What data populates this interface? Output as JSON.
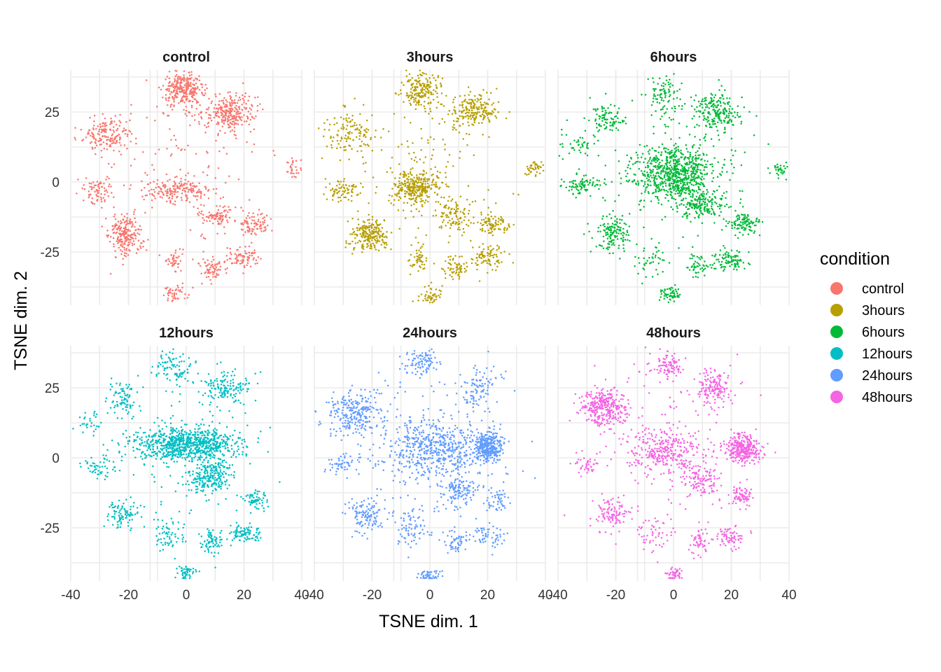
{
  "chart_data": {
    "type": "scatter",
    "xlabel": "TSNE dim. 1",
    "ylabel": "TSNE dim. 2",
    "xlim": [
      -40,
      40
    ],
    "ylim": [
      -44,
      40
    ],
    "xticks": [
      -40,
      -20,
      0,
      20,
      40
    ],
    "yticks": [
      -25,
      0,
      25
    ],
    "grid": true,
    "legend": {
      "title": "condition",
      "position": "right"
    },
    "panels": [
      {
        "title": "control",
        "color": "#F8766D",
        "clusters": [
          {
            "x": -1,
            "y": 33,
            "sx": 3.5,
            "sy": 3,
            "n": 300
          },
          {
            "x": 15,
            "y": 25,
            "sx": 4.5,
            "sy": 3.2,
            "n": 260
          },
          {
            "x": -27,
            "y": 17,
            "sx": 4.5,
            "sy": 3.5,
            "n": 170
          },
          {
            "x": -30,
            "y": -3,
            "sx": 2.5,
            "sy": 2.5,
            "n": 70
          },
          {
            "x": -3,
            "y": -3,
            "sx": 5,
            "sy": 2,
            "n": 160
          },
          {
            "x": -21,
            "y": -19,
            "sx": 3,
            "sy": 3.5,
            "n": 220
          },
          {
            "x": 10,
            "y": -12,
            "sx": 3,
            "sy": 2,
            "n": 80
          },
          {
            "x": 24,
            "y": -15,
            "sx": 3,
            "sy": 2,
            "n": 80
          },
          {
            "x": 9,
            "y": -31,
            "sx": 2.5,
            "sy": 2,
            "n": 70
          },
          {
            "x": 20,
            "y": -27,
            "sx": 3,
            "sy": 2,
            "n": 80
          },
          {
            "x": -4,
            "y": -28,
            "sx": 2,
            "sy": 2,
            "n": 40
          },
          {
            "x": -4,
            "y": -40,
            "sx": 2,
            "sy": 1.6,
            "n": 45
          },
          {
            "x": 37,
            "y": 5,
            "sx": 1.5,
            "sy": 1.5,
            "n": 30
          },
          {
            "x": 0,
            "y": 5,
            "sx": 14,
            "sy": 14,
            "n": 140
          }
        ]
      },
      {
        "title": "3hours",
        "color": "#B79F00",
        "clusters": [
          {
            "x": -3,
            "y": 33,
            "sx": 3,
            "sy": 3,
            "n": 180
          },
          {
            "x": 15,
            "y": 26,
            "sx": 4,
            "sy": 3,
            "n": 200
          },
          {
            "x": -27,
            "y": 17,
            "sx": 5,
            "sy": 4,
            "n": 120
          },
          {
            "x": -30,
            "y": -3,
            "sx": 3,
            "sy": 2,
            "n": 70
          },
          {
            "x": -5,
            "y": -2,
            "sx": 4,
            "sy": 3,
            "n": 300
          },
          {
            "x": -21,
            "y": -19,
            "sx": 3,
            "sy": 3,
            "n": 220
          },
          {
            "x": 8,
            "y": -12,
            "sx": 3,
            "sy": 3,
            "n": 90
          },
          {
            "x": 22,
            "y": -15,
            "sx": 3,
            "sy": 2,
            "n": 90
          },
          {
            "x": 9,
            "y": -31,
            "sx": 2,
            "sy": 2,
            "n": 60
          },
          {
            "x": 20,
            "y": -27,
            "sx": 3,
            "sy": 2,
            "n": 80
          },
          {
            "x": -4,
            "y": -28,
            "sx": 2,
            "sy": 2,
            "n": 45
          },
          {
            "x": 0,
            "y": -41,
            "sx": 2,
            "sy": 1.5,
            "n": 50
          },
          {
            "x": 36,
            "y": 5,
            "sx": 1.5,
            "sy": 1.5,
            "n": 40
          },
          {
            "x": 0,
            "y": 5,
            "sx": 14,
            "sy": 14,
            "n": 140
          }
        ]
      },
      {
        "title": "6hours",
        "color": "#00BA38",
        "clusters": [
          {
            "x": -3,
            "y": 31,
            "sx": 3,
            "sy": 4,
            "n": 90
          },
          {
            "x": 15,
            "y": 25,
            "sx": 4,
            "sy": 3.5,
            "n": 210
          },
          {
            "x": -23,
            "y": 22,
            "sx": 3,
            "sy": 3,
            "n": 90
          },
          {
            "x": -33,
            "y": 13,
            "sx": 4,
            "sy": 2,
            "n": 40
          },
          {
            "x": -32,
            "y": -1,
            "sx": 4,
            "sy": 2,
            "n": 90
          },
          {
            "x": 0,
            "y": 3,
            "sx": 7,
            "sy": 5,
            "n": 700
          },
          {
            "x": 10,
            "y": -8,
            "sx": 4,
            "sy": 3,
            "n": 160
          },
          {
            "x": -21,
            "y": -19,
            "sx": 3,
            "sy": 3,
            "n": 140
          },
          {
            "x": 24,
            "y": -15,
            "sx": 3,
            "sy": 2,
            "n": 100
          },
          {
            "x": 20,
            "y": -28,
            "sx": 3,
            "sy": 2,
            "n": 90
          },
          {
            "x": 9,
            "y": -30,
            "sx": 2,
            "sy": 2,
            "n": 50
          },
          {
            "x": -1,
            "y": -40,
            "sx": 2,
            "sy": 1.5,
            "n": 60
          },
          {
            "x": 37,
            "y": 4,
            "sx": 1.5,
            "sy": 1.5,
            "n": 30
          },
          {
            "x": -8,
            "y": -28,
            "sx": 3,
            "sy": 3,
            "n": 40
          },
          {
            "x": 0,
            "y": 5,
            "sx": 14,
            "sy": 14,
            "n": 120
          }
        ]
      },
      {
        "title": "12hours",
        "color": "#00BFC4",
        "clusters": [
          {
            "x": -4,
            "y": 32,
            "sx": 3,
            "sy": 3.5,
            "n": 90
          },
          {
            "x": 14,
            "y": 25,
            "sx": 4,
            "sy": 3,
            "n": 140
          },
          {
            "x": -22,
            "y": 21,
            "sx": 2.5,
            "sy": 3,
            "n": 80
          },
          {
            "x": -34,
            "y": 13,
            "sx": 2,
            "sy": 2,
            "n": 30
          },
          {
            "x": -30,
            "y": -3,
            "sx": 3,
            "sy": 2,
            "n": 50
          },
          {
            "x": 0,
            "y": 5,
            "sx": 9,
            "sy": 3,
            "n": 800
          },
          {
            "x": 8,
            "y": -7,
            "sx": 3.5,
            "sy": 3,
            "n": 220
          },
          {
            "x": -22,
            "y": -20,
            "sx": 3,
            "sy": 2.5,
            "n": 90
          },
          {
            "x": 24,
            "y": -15,
            "sx": 2,
            "sy": 2,
            "n": 60
          },
          {
            "x": 20,
            "y": -27,
            "sx": 3,
            "sy": 1.5,
            "n": 90
          },
          {
            "x": 9,
            "y": -30,
            "sx": 2,
            "sy": 2,
            "n": 70
          },
          {
            "x": -6,
            "y": -27,
            "sx": 3,
            "sy": 3,
            "n": 60
          },
          {
            "x": 0,
            "y": -41,
            "sx": 2,
            "sy": 1.5,
            "n": 50
          },
          {
            "x": 0,
            "y": 5,
            "sx": 14,
            "sy": 14,
            "n": 120
          }
        ]
      },
      {
        "title": "24hours",
        "color": "#619CFF",
        "clusters": [
          {
            "x": -3,
            "y": 34,
            "sx": 3,
            "sy": 2.5,
            "n": 90
          },
          {
            "x": 17,
            "y": 25,
            "sx": 3.5,
            "sy": 4,
            "n": 100
          },
          {
            "x": -26,
            "y": 16,
            "sx": 5,
            "sy": 4,
            "n": 260
          },
          {
            "x": -30,
            "y": -2,
            "sx": 3,
            "sy": 2,
            "n": 50
          },
          {
            "x": 20,
            "y": 4,
            "sx": 2.5,
            "sy": 2.5,
            "n": 300
          },
          {
            "x": 2,
            "y": 3,
            "sx": 9,
            "sy": 5,
            "n": 500
          },
          {
            "x": -22,
            "y": -20,
            "sx": 3,
            "sy": 3,
            "n": 120
          },
          {
            "x": 10,
            "y": -12,
            "sx": 3,
            "sy": 3,
            "n": 120
          },
          {
            "x": 23,
            "y": -15,
            "sx": 2,
            "sy": 2,
            "n": 50
          },
          {
            "x": 20,
            "y": -28,
            "sx": 3,
            "sy": 2,
            "n": 60
          },
          {
            "x": 9,
            "y": -30,
            "sx": 2,
            "sy": 2,
            "n": 50
          },
          {
            "x": -6,
            "y": -25,
            "sx": 3,
            "sy": 4,
            "n": 70
          },
          {
            "x": 0,
            "y": -42,
            "sx": 2,
            "sy": 1.5,
            "n": 50
          },
          {
            "x": 0,
            "y": 5,
            "sx": 14,
            "sy": 14,
            "n": 150
          }
        ]
      },
      {
        "title": "48hours",
        "color": "#F564E3",
        "clusters": [
          {
            "x": -2,
            "y": 33,
            "sx": 3,
            "sy": 2.5,
            "n": 100
          },
          {
            "x": 14,
            "y": 25,
            "sx": 3,
            "sy": 3,
            "n": 150
          },
          {
            "x": -24,
            "y": 18,
            "sx": 4,
            "sy": 3.5,
            "n": 330
          },
          {
            "x": -31,
            "y": -3,
            "sx": 2,
            "sy": 2,
            "n": 40
          },
          {
            "x": 24,
            "y": 3,
            "sx": 3,
            "sy": 2.5,
            "n": 300
          },
          {
            "x": -3,
            "y": 2,
            "sx": 6,
            "sy": 4,
            "n": 300
          },
          {
            "x": 10,
            "y": -8,
            "sx": 3,
            "sy": 3,
            "n": 100
          },
          {
            "x": -22,
            "y": -20,
            "sx": 3,
            "sy": 3,
            "n": 100
          },
          {
            "x": 24,
            "y": -14,
            "sx": 2,
            "sy": 2,
            "n": 70
          },
          {
            "x": 20,
            "y": -28,
            "sx": 2.5,
            "sy": 2,
            "n": 70
          },
          {
            "x": 9,
            "y": -30,
            "sx": 2,
            "sy": 2,
            "n": 50
          },
          {
            "x": -6,
            "y": -27,
            "sx": 3,
            "sy": 3,
            "n": 50
          },
          {
            "x": 0,
            "y": -42,
            "sx": 1.5,
            "sy": 1.5,
            "n": 50
          },
          {
            "x": 0,
            "y": 5,
            "sx": 14,
            "sy": 14,
            "n": 140
          }
        ]
      }
    ]
  }
}
